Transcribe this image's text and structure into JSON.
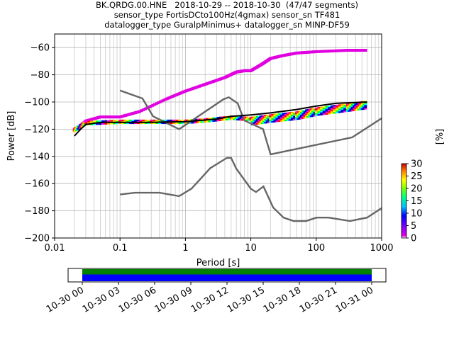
{
  "title_lines": [
    "BK.QRDG.00.HNE   2018-10-29 -- 2018-10-30  (47/47 segments)",
    "sensor_type FortisDCto100Hz(4gmax) sensor_sn TF481",
    "datalogger_type GuralpMinimus+ datalogger_sn MINP-DF59"
  ],
  "chart_data": {
    "type": "line",
    "xlabel": "Period [s]",
    "ylabel": "Power [dB]",
    "x_scale": "log",
    "xlim": [
      0.01,
      1000
    ],
    "ylim": [
      -200,
      -50
    ],
    "grid": true,
    "x_ticks": [
      {
        "value": 0.01,
        "label": "0.01"
      },
      {
        "value": 0.1,
        "label": "0.1"
      },
      {
        "value": 1,
        "label": "1"
      },
      {
        "value": 10,
        "label": "10"
      },
      {
        "value": 100,
        "label": "100"
      },
      {
        "value": 1000,
        "label": "1000"
      }
    ],
    "y_ticks": [
      -60,
      -80,
      -100,
      -120,
      -140,
      -160,
      -180,
      -200
    ],
    "series": [
      {
        "kind": "noise_model_high",
        "color": "#666666",
        "points": [
          [
            0.1,
            -91.5
          ],
          [
            0.22,
            -97.4
          ],
          [
            0.32,
            -110.5
          ],
          [
            0.8,
            -120
          ],
          [
            3.8,
            -98
          ],
          [
            4.6,
            -96.5
          ],
          [
            6.3,
            -101
          ],
          [
            7.9,
            -113.5
          ],
          [
            15.4,
            -120
          ],
          [
            20,
            -138.5
          ],
          [
            354.8,
            -126
          ],
          [
            1000,
            -112
          ]
        ]
      },
      {
        "kind": "noise_model_low",
        "color": "#666666",
        "points": [
          [
            0.1,
            -168
          ],
          [
            0.17,
            -166.7
          ],
          [
            0.4,
            -166.7
          ],
          [
            0.8,
            -169.2
          ],
          [
            1.24,
            -163.7
          ],
          [
            2.4,
            -148.6
          ],
          [
            4.3,
            -141.1
          ],
          [
            5,
            -141.1
          ],
          [
            6,
            -149
          ],
          [
            10,
            -163.8
          ],
          [
            12,
            -166.2
          ],
          [
            15.6,
            -162.1
          ],
          [
            21.9,
            -177.5
          ],
          [
            31.6,
            -185
          ],
          [
            45,
            -187.5
          ],
          [
            70,
            -187.5
          ],
          [
            101,
            -185
          ],
          [
            154,
            -185
          ],
          [
            328,
            -187.5
          ],
          [
            600,
            -185
          ],
          [
            1000,
            -178
          ]
        ]
      },
      {
        "kind": "mode_line",
        "color": "#000000",
        "points": [
          [
            0.02,
            -125
          ],
          [
            0.025,
            -120
          ],
          [
            0.03,
            -116.5
          ],
          [
            0.05,
            -115
          ],
          [
            0.1,
            -115
          ],
          [
            0.3,
            -115
          ],
          [
            1,
            -114.5
          ],
          [
            3,
            -112.5
          ],
          [
            5,
            -110.5
          ],
          [
            10,
            -109.5
          ],
          [
            20,
            -108
          ],
          [
            50,
            -105.5
          ],
          [
            100,
            -103
          ],
          [
            200,
            -101
          ],
          [
            600,
            -100
          ]
        ]
      }
    ],
    "psd_density_traces": [
      {
        "description": "upper magenta cluster",
        "color": "#e000e0",
        "points": [
          [
            0.02,
            -121
          ],
          [
            0.03,
            -114
          ],
          [
            0.05,
            -111
          ],
          [
            0.1,
            -111
          ],
          [
            0.2,
            -107
          ],
          [
            0.5,
            -98
          ],
          [
            1,
            -92
          ],
          [
            2,
            -87
          ],
          [
            4,
            -82
          ],
          [
            6,
            -78
          ],
          [
            8,
            -77
          ],
          [
            10,
            -77
          ],
          [
            15,
            -72
          ],
          [
            20,
            -68
          ],
          [
            30,
            -66
          ],
          [
            50,
            -64
          ],
          [
            100,
            -63
          ],
          [
            300,
            -62
          ],
          [
            600,
            -62
          ]
        ]
      },
      {
        "description": "main density band",
        "color": "#ff00ff",
        "points": [
          [
            0.02,
            -120
          ],
          [
            0.03,
            -115
          ],
          [
            0.1,
            -114
          ],
          [
            0.3,
            -114
          ],
          [
            1,
            -114
          ],
          [
            2,
            -113
          ],
          [
            5,
            -111
          ],
          [
            10,
            -112
          ],
          [
            20,
            -110
          ],
          [
            50,
            -108
          ],
          [
            100,
            -105
          ],
          [
            300,
            -102
          ],
          [
            600,
            -100
          ]
        ]
      }
    ],
    "colorbar": {
      "label": "[%]",
      "ticks": [
        0,
        5,
        10,
        15,
        20,
        25,
        30
      ],
      "min": 0,
      "max": 30
    }
  },
  "time_coverage": {
    "tick_labels": [
      "10-30 00",
      "10-30 03",
      "10-30 06",
      "10-30 09",
      "10-30 12",
      "10-30 15",
      "10-30 18",
      "10-30 21",
      "10-31 00"
    ],
    "bars": [
      {
        "color": "#008000",
        "meaning": "data availability"
      },
      {
        "color": "#0000ff",
        "meaning": "processed segments"
      }
    ]
  }
}
